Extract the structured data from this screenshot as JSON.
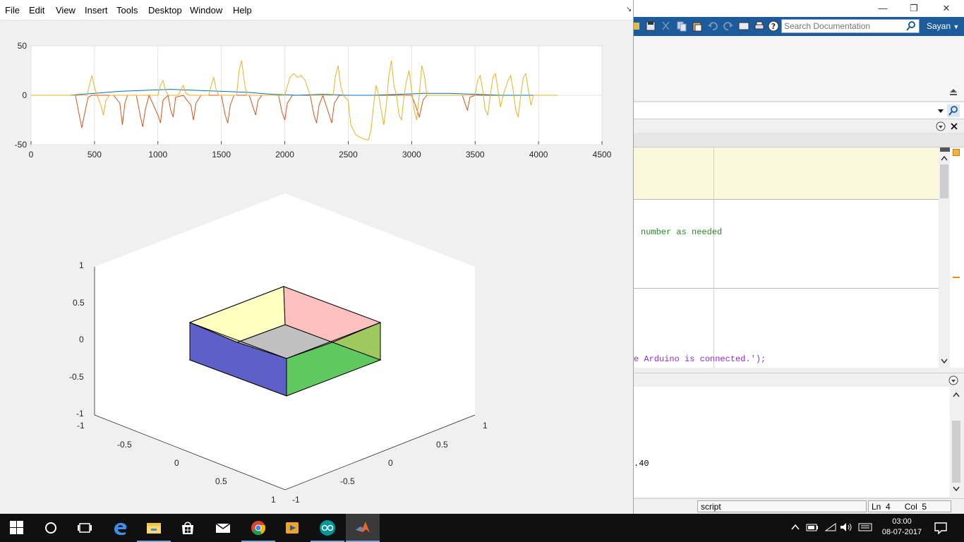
{
  "figure": {
    "menu": [
      "File",
      "Edit",
      "View",
      "Insert",
      "Tools",
      "Desktop",
      "Window",
      "Help"
    ],
    "dock_glyph": "↘"
  },
  "chart_data": [
    {
      "type": "line",
      "title": "",
      "xlabel": "",
      "ylabel": "",
      "xlim": [
        0,
        4500
      ],
      "ylim": [
        -50,
        50
      ],
      "x_ticks": [
        0,
        500,
        1000,
        1500,
        2000,
        2500,
        3000,
        3500,
        4000,
        4500
      ],
      "y_ticks": [
        -50,
        0,
        50
      ],
      "x_tick_labels": [
        "0",
        "500",
        "1000",
        "1500",
        "2000",
        "2500",
        "3000",
        "3500",
        "4000",
        "4500"
      ],
      "y_tick_labels": [
        "-50",
        "0",
        "50"
      ],
      "grid": true,
      "series": [
        {
          "color": "#d95319",
          "points": [
            [
              0,
              0
            ],
            [
              350,
              0
            ],
            [
              380,
              -20
            ],
            [
              400,
              -33
            ],
            [
              420,
              -20
            ],
            [
              450,
              -2
            ],
            [
              480,
              0
            ],
            [
              650,
              0
            ],
            [
              700,
              -8
            ],
            [
              720,
              -30
            ],
            [
              740,
              -8
            ],
            [
              760,
              0
            ],
            [
              830,
              0
            ],
            [
              860,
              -20
            ],
            [
              880,
              -32
            ],
            [
              900,
              -15
            ],
            [
              930,
              0
            ],
            [
              1000,
              -20
            ],
            [
              1020,
              -28
            ],
            [
              1040,
              -5
            ],
            [
              1080,
              0
            ],
            [
              1100,
              -15
            ],
            [
              1120,
              -22
            ],
            [
              1140,
              -2
            ],
            [
              1200,
              0
            ],
            [
              1260,
              -10
            ],
            [
              1280,
              -25
            ],
            [
              1300,
              -8
            ],
            [
              1340,
              0
            ],
            [
              1500,
              0
            ],
            [
              1530,
              -20
            ],
            [
              1550,
              -28
            ],
            [
              1570,
              -10
            ],
            [
              1600,
              0
            ],
            [
              1720,
              0
            ],
            [
              1750,
              -12
            ],
            [
              1770,
              -20
            ],
            [
              1790,
              -5
            ],
            [
              1820,
              0
            ],
            [
              1950,
              0
            ],
            [
              1980,
              -18
            ],
            [
              2000,
              -25
            ],
            [
              2020,
              -8
            ],
            [
              2060,
              0
            ],
            [
              2200,
              0
            ],
            [
              2230,
              -20
            ],
            [
              2250,
              -28
            ],
            [
              2270,
              -10
            ],
            [
              2300,
              0
            ],
            [
              2350,
              -20
            ],
            [
              2370,
              -28
            ],
            [
              2390,
              -8
            ],
            [
              2430,
              0
            ],
            [
              3000,
              0
            ],
            [
              3030,
              -10
            ],
            [
              3060,
              -22
            ],
            [
              3090,
              -5
            ],
            [
              3120,
              0
            ],
            [
              3400,
              0
            ],
            [
              3420,
              -8
            ],
            [
              3440,
              -15
            ],
            [
              3460,
              -2
            ],
            [
              3500,
              0
            ],
            [
              4150,
              0
            ]
          ]
        },
        {
          "color": "#0072bd",
          "points": [
            [
              0,
              0
            ],
            [
              300,
              0
            ],
            [
              500,
              2
            ],
            [
              700,
              4
            ],
            [
              900,
              5
            ],
            [
              1100,
              6
            ],
            [
              1300,
              5
            ],
            [
              1500,
              4
            ],
            [
              1700,
              3
            ],
            [
              1900,
              1
            ],
            [
              2100,
              0
            ],
            [
              2300,
              1
            ],
            [
              2500,
              0
            ],
            [
              2700,
              0
            ],
            [
              2900,
              1
            ],
            [
              3100,
              2
            ],
            [
              3300,
              2
            ],
            [
              3500,
              1
            ],
            [
              3700,
              0
            ],
            [
              3900,
              0
            ],
            [
              4150,
              0
            ]
          ]
        },
        {
          "color": "#edb120",
          "points": [
            [
              0,
              0
            ],
            [
              440,
              0
            ],
            [
              460,
              10
            ],
            [
              480,
              20
            ],
            [
              500,
              8
            ],
            [
              520,
              0
            ],
            [
              550,
              -10
            ],
            [
              570,
              -20
            ],
            [
              590,
              -5
            ],
            [
              620,
              0
            ],
            [
              1000,
              0
            ],
            [
              1020,
              10
            ],
            [
              1040,
              15
            ],
            [
              1060,
              5
            ],
            [
              1080,
              0
            ],
            [
              1160,
              0
            ],
            [
              1180,
              5
            ],
            [
              1200,
              10
            ],
            [
              1220,
              2
            ],
            [
              1250,
              0
            ],
            [
              1400,
              0
            ],
            [
              1420,
              10
            ],
            [
              1440,
              18
            ],
            [
              1460,
              5
            ],
            [
              1480,
              0
            ],
            [
              1620,
              0
            ],
            [
              1640,
              25
            ],
            [
              1660,
              35
            ],
            [
              1680,
              15
            ],
            [
              1700,
              0
            ],
            [
              1800,
              0
            ],
            [
              2000,
              0
            ],
            [
              2040,
              18
            ],
            [
              2070,
              22
            ],
            [
              2100,
              18
            ],
            [
              2130,
              20
            ],
            [
              2160,
              15
            ],
            [
              2200,
              0
            ],
            [
              2380,
              0
            ],
            [
              2400,
              20
            ],
            [
              2420,
              30
            ],
            [
              2440,
              10
            ],
            [
              2460,
              0
            ],
            [
              2500,
              -5
            ],
            [
              2520,
              -30
            ],
            [
              2560,
              -40
            ],
            [
              2600,
              -43
            ],
            [
              2640,
              -45
            ],
            [
              2660,
              -45
            ],
            [
              2680,
              -35
            ],
            [
              2700,
              -10
            ],
            [
              2720,
              10
            ],
            [
              2740,
              0
            ],
            [
              2760,
              -15
            ],
            [
              2780,
              -30
            ],
            [
              2800,
              -10
            ],
            [
              2820,
              20
            ],
            [
              2840,
              35
            ],
            [
              2860,
              10
            ],
            [
              2880,
              0
            ],
            [
              2900,
              -20
            ],
            [
              2920,
              -25
            ],
            [
              2940,
              0
            ],
            [
              2960,
              15
            ],
            [
              2980,
              25
            ],
            [
              3000,
              5
            ],
            [
              3020,
              -15
            ],
            [
              3040,
              -25
            ],
            [
              3060,
              0
            ],
            [
              3080,
              30
            ],
            [
              3100,
              20
            ],
            [
              3120,
              0
            ],
            [
              3200,
              0
            ],
            [
              3300,
              0
            ],
            [
              3500,
              0
            ],
            [
              3520,
              15
            ],
            [
              3540,
              20
            ],
            [
              3560,
              5
            ],
            [
              3580,
              -15
            ],
            [
              3600,
              -20
            ],
            [
              3620,
              0
            ],
            [
              3640,
              18
            ],
            [
              3660,
              22
            ],
            [
              3680,
              5
            ],
            [
              3700,
              -12
            ],
            [
              3720,
              0
            ],
            [
              3760,
              15
            ],
            [
              3780,
              20
            ],
            [
              3800,
              5
            ],
            [
              3820,
              -15
            ],
            [
              3840,
              -22
            ],
            [
              3860,
              0
            ],
            [
              3880,
              18
            ],
            [
              3900,
              22
            ],
            [
              3920,
              5
            ],
            [
              3940,
              -10
            ],
            [
              3960,
              0
            ],
            [
              4150,
              0
            ]
          ]
        }
      ]
    },
    {
      "type": "3d-box",
      "title": "",
      "xlim": [
        -1,
        1
      ],
      "ylim": [
        -1,
        1
      ],
      "zlim": [
        -1,
        1
      ],
      "x_tick_labels": [
        "-1",
        "-0.5",
        "0",
        "0.5",
        "1"
      ],
      "y_tick_labels": [
        "1",
        "0.5",
        "0",
        "-0.5",
        "-1"
      ],
      "z_tick_labels": [
        "1",
        "0.5",
        "0",
        "-0.5",
        "-1"
      ],
      "face_colors": {
        "top_left": "#ffffc0",
        "top_right": "#ffc0c0",
        "bottom_inner": "#c0c0c0",
        "front_left": "#5f5fc8",
        "front_right": "#5fc85f",
        "left_wall": "#9f9fc8",
        "right_wall": "#9fc85f"
      }
    }
  ],
  "matlab": {
    "window_controls": [
      "—",
      "❐",
      "✕"
    ],
    "search_placeholder": "Search Documentation",
    "user": "Sayan",
    "editor_lines": [
      "number as needed",
      "e Arduino is connected.');"
    ],
    "command_line": ".40",
    "status": {
      "type": "script",
      "ln_label": "Ln",
      "ln": "4",
      "col_label": "Col",
      "col": "5"
    }
  },
  "taskbar": {
    "time": "03:00",
    "date": "08-07-2017",
    "apps": [
      "start-icon",
      "cortana-icon",
      "task-view-icon",
      "edge-icon",
      "file-explorer-icon",
      "store-icon",
      "mail-icon",
      "chrome-icon",
      "media-player-icon",
      "arduino-icon",
      "matlab-icon"
    ]
  }
}
